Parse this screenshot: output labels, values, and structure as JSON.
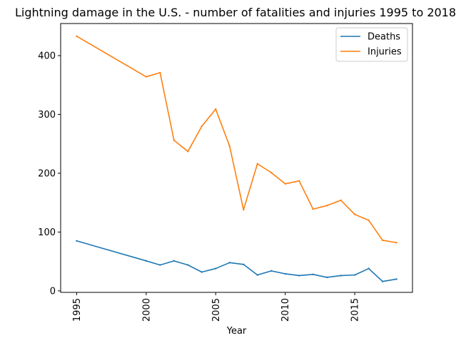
{
  "chart_data": {
    "type": "line",
    "title": "Lightning damage in the U.S. - number of fatalities and injuries 1995 to 2018",
    "xlabel": "Year",
    "ylabel": "",
    "x": [
      1995,
      2000,
      2001,
      2002,
      2003,
      2004,
      2005,
      2006,
      2007,
      2008,
      2009,
      2010,
      2011,
      2012,
      2013,
      2014,
      2015,
      2016,
      2017,
      2018
    ],
    "series": [
      {
        "name": "Deaths",
        "color": "#1f77b4",
        "values": [
          85,
          51,
          44,
          51,
          44,
          32,
          38,
          48,
          45,
          27,
          34,
          29,
          26,
          28,
          23,
          26,
          27,
          38,
          16,
          20
        ]
      },
      {
        "name": "Injuries",
        "color": "#ff7f0e",
        "values": [
          433,
          364,
          371,
          256,
          237,
          280,
          309,
          246,
          138,
          216,
          201,
          182,
          187,
          139,
          145,
          154,
          130,
          120,
          86,
          82
        ]
      }
    ],
    "xlim": [
      1993.85,
      2019.15
    ],
    "ylim": [
      -2.55,
      454.55
    ],
    "xticks": [
      "1995",
      "2000",
      "2005",
      "2010",
      "2015"
    ],
    "yticks": [
      "0",
      "100",
      "200",
      "300",
      "400"
    ],
    "legend": "top-right",
    "grid": false
  }
}
